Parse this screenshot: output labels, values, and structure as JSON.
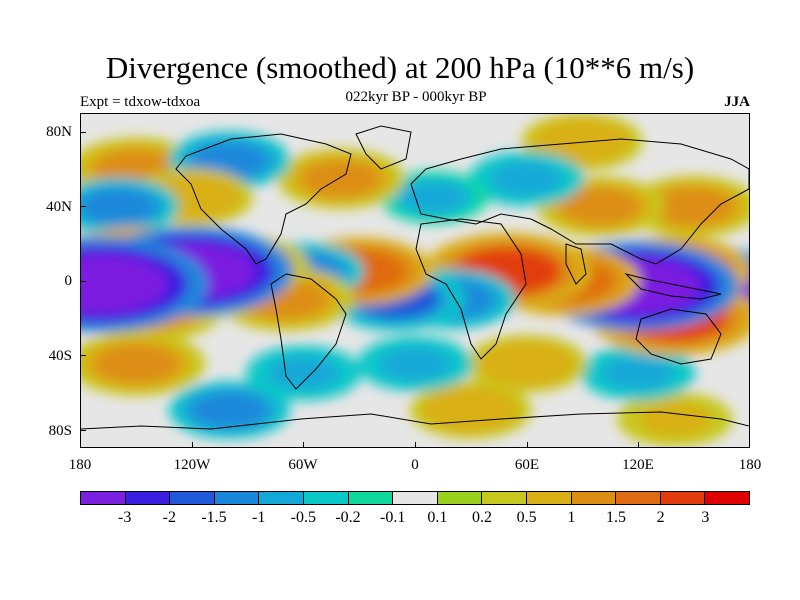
{
  "map": {
    "title": "Divergence (smoothed) at 200 hPa (10**6 m/s)",
    "subtitle": "022kyr BP - 000kyr BP",
    "left_label": "Expt = tdxow-tdxoa",
    "right_label": "JJA",
    "lat_labels": [
      "80N",
      "40N",
      "0",
      "40S",
      "80S"
    ],
    "lon_labels": [
      "180",
      "120W",
      "60W",
      "0",
      "60E",
      "120E",
      "180"
    ],
    "background_color": "#e6e6e6",
    "coastline_color": "#000000"
  },
  "colorbar": {
    "colors": [
      "#7b1fe0",
      "#3a1fe0",
      "#1f58d8",
      "#1a88da",
      "#12a9d8",
      "#0bc8c8",
      "#10d89c",
      "#e6e6e6",
      "#99d21e",
      "#c7c81c",
      "#d9b016",
      "#dd8e12",
      "#e06a10",
      "#e23c0c",
      "#e00000"
    ],
    "labels": [
      "-3",
      "-2",
      "-1.5",
      "-1",
      "-0.5",
      "-0.2",
      "-0.1",
      "0.1",
      "0.2",
      "0.5",
      "1",
      "1.5",
      "2",
      "3"
    ]
  },
  "field_blobs": [
    {
      "lon": -170,
      "lat": -2,
      "value": -4
    },
    {
      "lon": -120,
      "lat": 5,
      "value": -3.5
    },
    {
      "lon": -150,
      "lat": 10,
      "value": 2
    },
    {
      "lon": -140,
      "lat": -15,
      "value": 1.5
    },
    {
      "lon": -90,
      "lat": 8,
      "value": 1
    },
    {
      "lon": -70,
      "lat": -10,
      "value": 1.5
    },
    {
      "lon": -60,
      "lat": 5,
      "value": -1
    },
    {
      "lon": -30,
      "lat": 5,
      "value": 1.8
    },
    {
      "lon": -10,
      "lat": -10,
      "value": -1.5
    },
    {
      "lon": 20,
      "lat": -10,
      "value": -1.2
    },
    {
      "lon": 50,
      "lat": 5,
      "value": 2.5
    },
    {
      "lon": 80,
      "lat": 0,
      "value": 2
    },
    {
      "lon": 120,
      "lat": -3,
      "value": -3.5
    },
    {
      "lon": 140,
      "lat": 5,
      "value": 2
    },
    {
      "lon": 140,
      "lat": -20,
      "value": 2.5
    },
    {
      "lon": 165,
      "lat": -5,
      "value": -3
    },
    {
      "lon": -160,
      "lat": 40,
      "value": -1
    },
    {
      "lon": -120,
      "lat": 45,
      "value": 1
    },
    {
      "lon": -100,
      "lat": 65,
      "value": -1
    },
    {
      "lon": -40,
      "lat": 55,
      "value": 1.2
    },
    {
      "lon": 10,
      "lat": 45,
      "value": -0.6
    },
    {
      "lon": 60,
      "lat": 55,
      "value": -0.8
    },
    {
      "lon": 100,
      "lat": 40,
      "value": 1.2
    },
    {
      "lon": 150,
      "lat": 40,
      "value": 1.3
    },
    {
      "lon": -150,
      "lat": 60,
      "value": 1.5
    },
    {
      "lon": 90,
      "lat": 75,
      "value": 1
    },
    {
      "lon": -150,
      "lat": -45,
      "value": 1.5
    },
    {
      "lon": -60,
      "lat": -50,
      "value": -0.8
    },
    {
      "lon": 0,
      "lat": -45,
      "value": -0.8
    },
    {
      "lon": 60,
      "lat": -45,
      "value": 1
    },
    {
      "lon": 120,
      "lat": -50,
      "value": -0.8
    },
    {
      "lon": -100,
      "lat": -70,
      "value": -1
    },
    {
      "lon": 30,
      "lat": -70,
      "value": 1
    },
    {
      "lon": 140,
      "lat": -75,
      "value": 0.8
    }
  ]
}
